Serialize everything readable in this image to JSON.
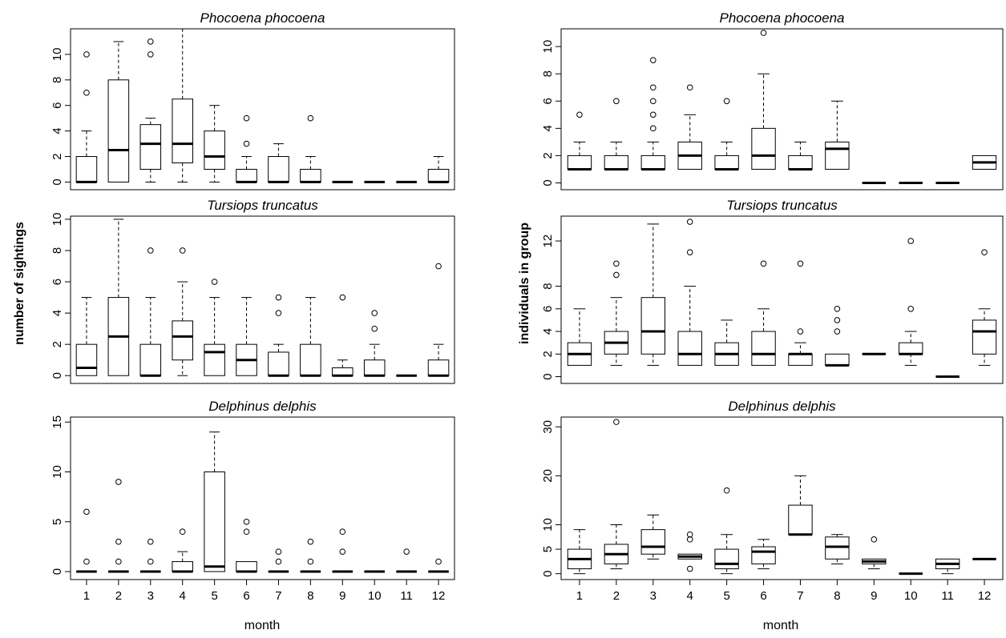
{
  "chart_data": [
    {
      "type": "box",
      "panel": "left-1",
      "title": "Phocoena phocoena",
      "categories": [
        1,
        2,
        3,
        4,
        5,
        6,
        7,
        8,
        9,
        10,
        11,
        12
      ],
      "ylim": [
        -0.6,
        12
      ],
      "yticks": [
        0,
        2,
        4,
        6,
        8,
        10
      ],
      "boxes": [
        {
          "q1": 0,
          "median": 0,
          "q3": 2,
          "lo": 0,
          "hi": 4,
          "out": [
            7,
            10
          ]
        },
        {
          "q1": 0,
          "median": 2.5,
          "q3": 8,
          "lo": 0,
          "hi": 11,
          "out": []
        },
        {
          "q1": 1,
          "median": 3,
          "q3": 4.5,
          "lo": 0,
          "hi": 5,
          "out": [
            10,
            11
          ]
        },
        {
          "q1": 1.5,
          "median": 3,
          "q3": 6.5,
          "lo": 0,
          "hi": 12,
          "out": []
        },
        {
          "q1": 1,
          "median": 2,
          "q3": 4,
          "lo": 0,
          "hi": 6,
          "out": []
        },
        {
          "q1": 0,
          "median": 0,
          "q3": 1,
          "lo": 0,
          "hi": 2,
          "out": [
            3,
            5
          ]
        },
        {
          "q1": 0,
          "median": 0,
          "q3": 2,
          "lo": 0,
          "hi": 3,
          "out": []
        },
        {
          "q1": 0,
          "median": 0,
          "q3": 1,
          "lo": 0,
          "hi": 2,
          "out": [
            5
          ]
        },
        {
          "q1": 0,
          "median": 0,
          "q3": 0,
          "lo": 0,
          "hi": 0,
          "out": []
        },
        {
          "q1": 0,
          "median": 0,
          "q3": 0,
          "lo": 0,
          "hi": 0,
          "out": []
        },
        {
          "q1": 0,
          "median": 0,
          "q3": 0,
          "lo": 0,
          "hi": 0,
          "out": []
        },
        {
          "q1": 0,
          "median": 0,
          "q3": 1,
          "lo": 0,
          "hi": 2,
          "out": []
        }
      ]
    },
    {
      "type": "box",
      "panel": "left-2",
      "title": "Tursiops truncatus",
      "categories": [
        1,
        2,
        3,
        4,
        5,
        6,
        7,
        8,
        9,
        10,
        11,
        12
      ],
      "ylim": [
        -0.5,
        10.2
      ],
      "yticks": [
        0,
        2,
        4,
        6,
        8,
        10
      ],
      "boxes": [
        {
          "q1": 0,
          "median": 0.5,
          "q3": 2,
          "lo": 0,
          "hi": 5,
          "out": []
        },
        {
          "q1": 0,
          "median": 2.5,
          "q3": 5,
          "lo": 0,
          "hi": 10,
          "out": []
        },
        {
          "q1": 0,
          "median": 0,
          "q3": 2,
          "lo": 0,
          "hi": 5,
          "out": [
            8
          ]
        },
        {
          "q1": 1,
          "median": 2.5,
          "q3": 3.5,
          "lo": 0,
          "hi": 6,
          "out": [
            8
          ]
        },
        {
          "q1": 0,
          "median": 1.5,
          "q3": 2,
          "lo": 0,
          "hi": 5,
          "out": [
            6
          ]
        },
        {
          "q1": 0,
          "median": 1,
          "q3": 2,
          "lo": 0,
          "hi": 5,
          "out": []
        },
        {
          "q1": 0,
          "median": 0,
          "q3": 1.5,
          "lo": 0,
          "hi": 2,
          "out": [
            4,
            5
          ]
        },
        {
          "q1": 0,
          "median": 0,
          "q3": 2,
          "lo": 0,
          "hi": 5,
          "out": []
        },
        {
          "q1": 0,
          "median": 0,
          "q3": 0.5,
          "lo": 0,
          "hi": 1,
          "out": [
            5
          ]
        },
        {
          "q1": 0,
          "median": 0,
          "q3": 1,
          "lo": 0,
          "hi": 2,
          "out": [
            3,
            4
          ]
        },
        {
          "q1": 0,
          "median": 0,
          "q3": 0,
          "lo": 0,
          "hi": 0,
          "out": []
        },
        {
          "q1": 0,
          "median": 0,
          "q3": 1,
          "lo": 0,
          "hi": 2,
          "out": [
            7
          ]
        }
      ]
    },
    {
      "type": "box",
      "panel": "left-3",
      "title": "Delphinus delphis",
      "categories": [
        1,
        2,
        3,
        4,
        5,
        6,
        7,
        8,
        9,
        10,
        11,
        12
      ],
      "ylim": [
        -0.8,
        15.5
      ],
      "yticks": [
        0,
        5,
        10,
        15
      ],
      "boxes": [
        {
          "q1": 0,
          "median": 0,
          "q3": 0,
          "lo": 0,
          "hi": 0,
          "out": [
            1,
            6
          ]
        },
        {
          "q1": 0,
          "median": 0,
          "q3": 0,
          "lo": 0,
          "hi": 0,
          "out": [
            1,
            3,
            9
          ]
        },
        {
          "q1": 0,
          "median": 0,
          "q3": 0,
          "lo": 0,
          "hi": 0,
          "out": [
            1,
            3
          ]
        },
        {
          "q1": 0,
          "median": 0,
          "q3": 1,
          "lo": 0,
          "hi": 2,
          "out": [
            4
          ]
        },
        {
          "q1": 0,
          "median": 0.5,
          "q3": 10,
          "lo": 0,
          "hi": 14,
          "out": []
        },
        {
          "q1": 0,
          "median": 0,
          "q3": 1,
          "lo": 0,
          "hi": 1,
          "out": [
            4,
            5
          ]
        },
        {
          "q1": 0,
          "median": 0,
          "q3": 0,
          "lo": 0,
          "hi": 0,
          "out": [
            1,
            2
          ]
        },
        {
          "q1": 0,
          "median": 0,
          "q3": 0,
          "lo": 0,
          "hi": 0,
          "out": [
            1,
            3
          ]
        },
        {
          "q1": 0,
          "median": 0,
          "q3": 0,
          "lo": 0,
          "hi": 0,
          "out": [
            2,
            4
          ]
        },
        {
          "q1": 0,
          "median": 0,
          "q3": 0,
          "lo": 0,
          "hi": 0,
          "out": []
        },
        {
          "q1": 0,
          "median": 0,
          "q3": 0,
          "lo": 0,
          "hi": 0,
          "out": [
            2
          ]
        },
        {
          "q1": 0,
          "median": 0,
          "q3": 0,
          "lo": 0,
          "hi": 0,
          "out": [
            1
          ]
        }
      ]
    },
    {
      "type": "box",
      "panel": "right-1",
      "title": "Phocoena phocoena",
      "categories": [
        1,
        2,
        3,
        4,
        5,
        6,
        7,
        8,
        9,
        10,
        11,
        12
      ],
      "ylim": [
        -0.5,
        11.3
      ],
      "yticks": [
        0,
        2,
        4,
        6,
        8,
        10
      ],
      "boxes": [
        {
          "q1": 1,
          "median": 1,
          "q3": 2,
          "lo": 1,
          "hi": 3,
          "out": [
            5
          ]
        },
        {
          "q1": 1,
          "median": 1,
          "q3": 2,
          "lo": 1,
          "hi": 3,
          "out": [
            6
          ]
        },
        {
          "q1": 1,
          "median": 1,
          "q3": 2,
          "lo": 1,
          "hi": 3,
          "out": [
            4,
            5,
            6,
            7,
            9
          ]
        },
        {
          "q1": 1,
          "median": 2,
          "q3": 3,
          "lo": 1,
          "hi": 5,
          "out": [
            7
          ]
        },
        {
          "q1": 1,
          "median": 1,
          "q3": 2,
          "lo": 1,
          "hi": 3,
          "out": [
            6
          ]
        },
        {
          "q1": 1,
          "median": 2,
          "q3": 4,
          "lo": 1,
          "hi": 8,
          "out": [
            11
          ]
        },
        {
          "q1": 1,
          "median": 1,
          "q3": 2,
          "lo": 1,
          "hi": 3,
          "out": []
        },
        {
          "q1": 1,
          "median": 2.5,
          "q3": 3,
          "lo": 1,
          "hi": 6,
          "out": []
        },
        {
          "q1": 0,
          "median": 0,
          "q3": 0,
          "lo": 0,
          "hi": 0,
          "out": []
        },
        {
          "q1": 0,
          "median": 0,
          "q3": 0,
          "lo": 0,
          "hi": 0,
          "out": []
        },
        {
          "q1": 0,
          "median": 0,
          "q3": 0,
          "lo": 0,
          "hi": 0,
          "out": []
        },
        {
          "q1": 1,
          "median": 1.5,
          "q3": 2,
          "lo": 1,
          "hi": 2,
          "out": []
        }
      ]
    },
    {
      "type": "box",
      "panel": "right-2",
      "title": "Tursiops truncatus",
      "categories": [
        1,
        2,
        3,
        4,
        5,
        6,
        7,
        8,
        9,
        10,
        11,
        12
      ],
      "ylim": [
        -0.6,
        14.2
      ],
      "yticks": [
        0,
        2,
        4,
        6,
        8,
        12
      ],
      "boxes": [
        {
          "q1": 1,
          "median": 2,
          "q3": 3,
          "lo": 1,
          "hi": 6,
          "out": []
        },
        {
          "q1": 2,
          "median": 3,
          "q3": 4,
          "lo": 1,
          "hi": 7,
          "out": [
            9,
            10
          ]
        },
        {
          "q1": 2,
          "median": 4,
          "q3": 7,
          "lo": 1,
          "hi": 13.5,
          "out": []
        },
        {
          "q1": 1,
          "median": 2,
          "q3": 4,
          "lo": 1,
          "hi": 8,
          "out": [
            11,
            13.7
          ]
        },
        {
          "q1": 1,
          "median": 2,
          "q3": 3,
          "lo": 1,
          "hi": 5,
          "out": []
        },
        {
          "q1": 1,
          "median": 2,
          "q3": 4,
          "lo": 1,
          "hi": 6,
          "out": [
            10
          ]
        },
        {
          "q1": 1,
          "median": 2,
          "q3": 2,
          "lo": 1,
          "hi": 3,
          "out": [
            4,
            10
          ]
        },
        {
          "q1": 1,
          "median": 1,
          "q3": 2,
          "lo": 1,
          "hi": 2,
          "out": [
            4,
            5,
            6
          ]
        },
        {
          "q1": 2,
          "median": 2,
          "q3": 2,
          "lo": 2,
          "hi": 2,
          "out": []
        },
        {
          "q1": 2,
          "median": 2,
          "q3": 3,
          "lo": 1,
          "hi": 4,
          "out": [
            6,
            12
          ]
        },
        {
          "q1": 0,
          "median": 0,
          "q3": 0,
          "lo": 0,
          "hi": 0,
          "out": []
        },
        {
          "q1": 2,
          "median": 4,
          "q3": 5,
          "lo": 1,
          "hi": 6,
          "out": [
            11
          ]
        }
      ]
    },
    {
      "type": "box",
      "panel": "right-3",
      "title": "Delphinus delphis",
      "categories": [
        1,
        2,
        3,
        4,
        5,
        6,
        7,
        8,
        9,
        10,
        11,
        12
      ],
      "ylim": [
        -1.2,
        32
      ],
      "yticks": [
        0,
        5,
        10,
        20,
        30
      ],
      "boxes": [
        {
          "q1": 1,
          "median": 3,
          "q3": 5,
          "lo": 0,
          "hi": 9,
          "out": []
        },
        {
          "q1": 2,
          "median": 4,
          "q3": 6,
          "lo": 1,
          "hi": 10,
          "out": [
            31
          ]
        },
        {
          "q1": 4,
          "median": 5.5,
          "q3": 9,
          "lo": 3,
          "hi": 12,
          "out": []
        },
        {
          "q1": 3,
          "median": 3.5,
          "q3": 4,
          "lo": 3,
          "hi": 4,
          "out": [
            1,
            7,
            8
          ]
        },
        {
          "q1": 1,
          "median": 2,
          "q3": 5,
          "lo": 0,
          "hi": 8,
          "out": [
            17
          ]
        },
        {
          "q1": 2,
          "median": 4.5,
          "q3": 5.5,
          "lo": 1,
          "hi": 7,
          "out": []
        },
        {
          "q1": 8,
          "median": 8,
          "q3": 14,
          "lo": 8,
          "hi": 20,
          "out": []
        },
        {
          "q1": 3,
          "median": 5.5,
          "q3": 7.5,
          "lo": 2,
          "hi": 8,
          "out": []
        },
        {
          "q1": 2,
          "median": 2.5,
          "q3": 3,
          "lo": 1,
          "hi": 3,
          "out": [
            7
          ]
        },
        {
          "q1": 0,
          "median": 0,
          "q3": 0,
          "lo": 0,
          "hi": 0,
          "out": []
        },
        {
          "q1": 1,
          "median": 2,
          "q3": 3,
          "lo": 0,
          "hi": 3,
          "out": []
        },
        {
          "q1": 3,
          "median": 3,
          "q3": 3,
          "lo": 3,
          "hi": 3,
          "out": []
        }
      ]
    }
  ],
  "labels": {
    "left_ylabel": "number of sightings",
    "right_ylabel": "individuals in group",
    "left_xlabel": "month",
    "right_xlabel": "month"
  }
}
